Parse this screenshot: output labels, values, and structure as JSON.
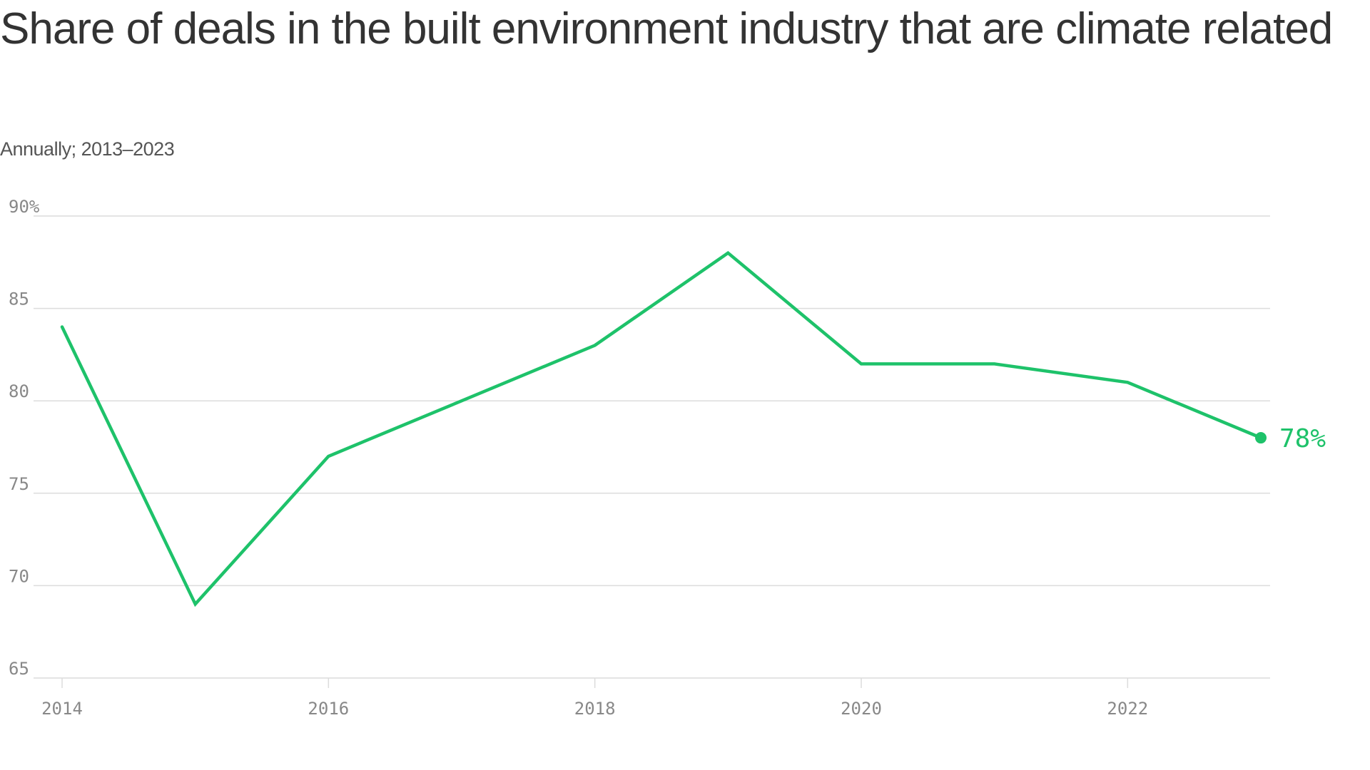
{
  "chart_data": {
    "type": "line",
    "title": "Share of deals in the built environment industry that are climate related",
    "subtitle": "Annually; 2013–2023",
    "xlabel": "",
    "ylabel": "",
    "x": [
      2014,
      2015,
      2016,
      2017,
      2018,
      2019,
      2020,
      2021,
      2022,
      2023
    ],
    "series": [
      {
        "values": [
          84,
          69,
          77,
          80,
          83,
          88,
          82,
          82,
          81,
          78
        ]
      }
    ],
    "xlim": [
      2014,
      2023
    ],
    "ylim": [
      65,
      90
    ],
    "x_ticks": [
      2014,
      2016,
      2018,
      2020,
      2022
    ],
    "y_ticks": [
      65,
      70,
      75,
      80,
      85,
      90
    ],
    "y_tick_labels": [
      "65",
      "70",
      "75",
      "80",
      "85",
      "90%"
    ],
    "end_label": "78%",
    "grid": "horizontal",
    "legend": "none",
    "colors": {
      "series": "#1ec26a",
      "grid": "#dcdcdc",
      "tick_text": "#888888",
      "title_text": "#333333"
    }
  }
}
